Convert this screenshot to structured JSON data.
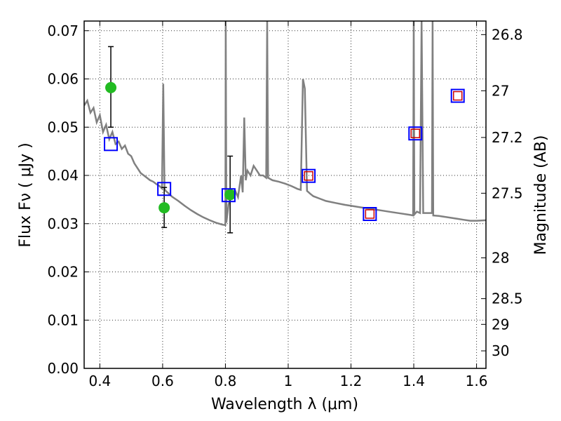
{
  "chart_data": {
    "type": "scatter",
    "xlabel": "Wavelength  λ (μm)",
    "ylabel": "Flux  Fν  ( μJy )",
    "ylabel_right": "Magnitude (AB)",
    "xlim": [
      0.35,
      1.63
    ],
    "ylim": [
      0.0,
      0.072
    ],
    "grid": true,
    "x_ticks": [
      0.4,
      0.6,
      0.8,
      1.0,
      1.2,
      1.4,
      1.6
    ],
    "x_tick_labels": [
      "0.4",
      "0.6",
      "0.8",
      "1",
      "1.2",
      "1.4",
      "1.6"
    ],
    "y_ticks": [
      0.0,
      0.01,
      0.02,
      0.03,
      0.04,
      0.05,
      0.06,
      0.07
    ],
    "y_tick_labels": [
      "0.00",
      "0.01",
      "0.02",
      "0.03",
      "0.04",
      "0.05",
      "0.06",
      "0.07"
    ],
    "mag_ticks": [
      26.8,
      27.0,
      27.2,
      27.5,
      28.0,
      28.5,
      29.0,
      30.0
    ],
    "mag_tick_labels": [
      "26.8",
      "27",
      "27.2",
      "27.5",
      "28",
      "28.5",
      "29",
      "30"
    ],
    "colors": {
      "model": "#808080",
      "observed": "#22bb22",
      "errorbar": "#000000",
      "model_band": "#0000ff",
      "inner_square": "#cc0000"
    },
    "series": [
      {
        "kind": "line",
        "points": [
          [
            0.35,
            0.0545
          ],
          [
            0.36,
            0.0555
          ],
          [
            0.37,
            0.053
          ],
          [
            0.38,
            0.054
          ],
          [
            0.39,
            0.051
          ],
          [
            0.4,
            0.0525
          ],
          [
            0.41,
            0.049
          ],
          [
            0.42,
            0.0505
          ],
          [
            0.43,
            0.0475
          ],
          [
            0.44,
            0.049
          ],
          [
            0.45,
            0.0465
          ],
          [
            0.46,
            0.047
          ],
          [
            0.47,
            0.0455
          ],
          [
            0.48,
            0.0462
          ],
          [
            0.49,
            0.0445
          ],
          [
            0.5,
            0.044
          ],
          [
            0.51,
            0.0425
          ],
          [
            0.52,
            0.0415
          ],
          [
            0.53,
            0.0405
          ],
          [
            0.54,
            0.04
          ],
          [
            0.55,
            0.0395
          ],
          [
            0.56,
            0.039
          ],
          [
            0.57,
            0.0387
          ],
          [
            0.58,
            0.0382
          ],
          [
            0.59,
            0.0378
          ],
          [
            0.598,
            0.0373
          ],
          [
            0.602,
            0.059
          ],
          [
            0.606,
            0.0372
          ],
          [
            0.61,
            0.0368
          ],
          [
            0.62,
            0.0362
          ],
          [
            0.63,
            0.0356
          ],
          [
            0.65,
            0.0347
          ],
          [
            0.67,
            0.0337
          ],
          [
            0.69,
            0.0328
          ],
          [
            0.71,
            0.032
          ],
          [
            0.73,
            0.0313
          ],
          [
            0.75,
            0.0307
          ],
          [
            0.77,
            0.0302
          ],
          [
            0.79,
            0.0298
          ],
          [
            0.8,
            0.0297
          ],
          [
            0.801,
            0.072
          ],
          [
            0.803,
            0.0302
          ],
          [
            0.81,
            0.034
          ],
          [
            0.82,
            0.036
          ],
          [
            0.83,
            0.037
          ],
          [
            0.84,
            0.0355
          ],
          [
            0.85,
            0.04
          ],
          [
            0.855,
            0.0365
          ],
          [
            0.86,
            0.052
          ],
          [
            0.865,
            0.039
          ],
          [
            0.87,
            0.041
          ],
          [
            0.88,
            0.04
          ],
          [
            0.89,
            0.042
          ],
          [
            0.9,
            0.041
          ],
          [
            0.91,
            0.04
          ],
          [
            0.92,
            0.04
          ],
          [
            0.93,
            0.0395
          ],
          [
            0.933,
            0.072
          ],
          [
            0.936,
            0.0395
          ],
          [
            0.95,
            0.039
          ],
          [
            0.97,
            0.0387
          ],
          [
            0.99,
            0.0383
          ],
          [
            1.01,
            0.0378
          ],
          [
            1.03,
            0.0372
          ],
          [
            1.04,
            0.037
          ],
          [
            1.047,
            0.06
          ],
          [
            1.053,
            0.058
          ],
          [
            1.06,
            0.0368
          ],
          [
            1.07,
            0.0362
          ],
          [
            1.08,
            0.0357
          ],
          [
            1.1,
            0.0352
          ],
          [
            1.12,
            0.0347
          ],
          [
            1.15,
            0.0343
          ],
          [
            1.18,
            0.0339
          ],
          [
            1.21,
            0.0336
          ],
          [
            1.24,
            0.0333
          ],
          [
            1.27,
            0.033
          ],
          [
            1.3,
            0.0327
          ],
          [
            1.33,
            0.0324
          ],
          [
            1.36,
            0.0321
          ],
          [
            1.39,
            0.0318
          ],
          [
            1.398,
            0.0317
          ],
          [
            1.4,
            0.072
          ],
          [
            1.402,
            0.0319
          ],
          [
            1.41,
            0.0325
          ],
          [
            1.42,
            0.0322
          ],
          [
            1.425,
            0.072
          ],
          [
            1.43,
            0.0322
          ],
          [
            1.45,
            0.0322
          ],
          [
            1.458,
            0.0322
          ],
          [
            1.46,
            0.072
          ],
          [
            1.462,
            0.0317
          ],
          [
            1.48,
            0.0316
          ],
          [
            1.5,
            0.0314
          ],
          [
            1.52,
            0.0312
          ],
          [
            1.54,
            0.031
          ],
          [
            1.56,
            0.0308
          ],
          [
            1.58,
            0.0306
          ],
          [
            1.6,
            0.0306
          ],
          [
            1.63,
            0.0307
          ]
        ]
      },
      {
        "kind": "observed",
        "points": [
          {
            "x": 0.435,
            "y": 0.0582,
            "yerr_low": 0.05,
            "yerr_high": 0.0667
          },
          {
            "x": 0.605,
            "y": 0.0333,
            "yerr_low": 0.0292,
            "yerr_high": 0.0375
          },
          {
            "x": 0.815,
            "y": 0.036,
            "yerr_low": 0.0281,
            "yerr_high": 0.044
          }
        ]
      },
      {
        "kind": "model_band",
        "points": [
          {
            "x": 0.435,
            "y": 0.0465,
            "inner": false
          },
          {
            "x": 0.605,
            "y": 0.0372,
            "inner": false
          },
          {
            "x": 0.81,
            "y": 0.0359,
            "inner": false
          },
          {
            "x": 1.065,
            "y": 0.0399,
            "inner": true
          },
          {
            "x": 1.26,
            "y": 0.032,
            "inner": true
          },
          {
            "x": 1.405,
            "y": 0.0487,
            "inner": true
          },
          {
            "x": 1.54,
            "y": 0.0565,
            "inner": true
          }
        ]
      }
    ]
  }
}
